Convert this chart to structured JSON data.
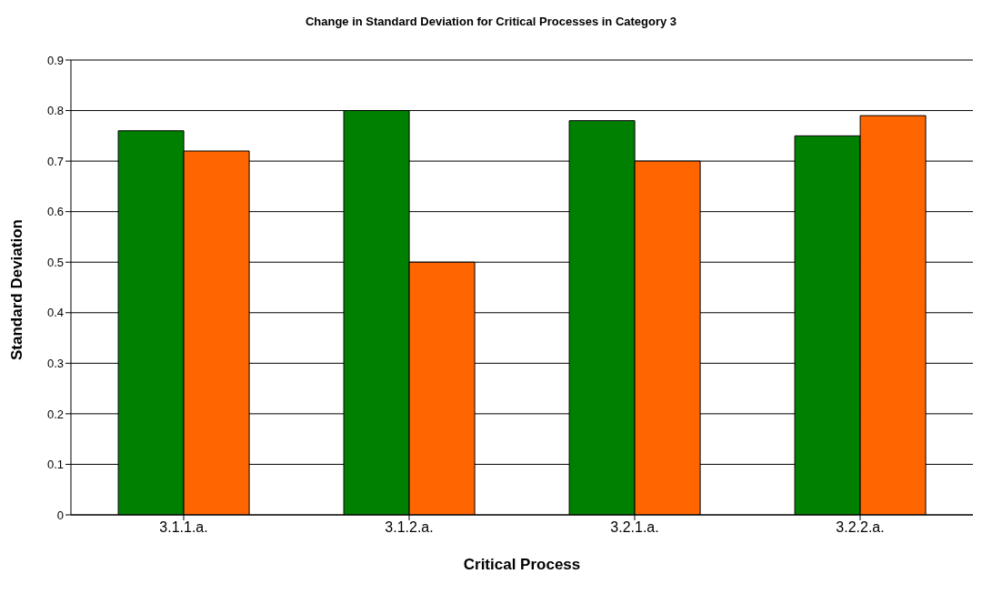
{
  "chart_data": {
    "type": "bar",
    "title": "Change in Standard Deviation for Critical Processes in Category 3",
    "xlabel": "Critical Process",
    "ylabel": "Standard Deviation",
    "categories": [
      "3.1.1.a.",
      "3.1.2.a.",
      "3.2.1.a.",
      "3.2.2.a."
    ],
    "series": [
      {
        "color": "#008000",
        "values": [
          0.76,
          0.8,
          0.78,
          0.75
        ]
      },
      {
        "color": "#ff6600",
        "values": [
          0.72,
          0.5,
          0.7,
          0.79
        ]
      }
    ],
    "ylim": [
      0,
      0.9
    ],
    "yticks": [
      0,
      0.1,
      0.2,
      0.3,
      0.4,
      0.5,
      0.6,
      0.7,
      0.8,
      0.9
    ],
    "grid": "y",
    "legend": false
  }
}
